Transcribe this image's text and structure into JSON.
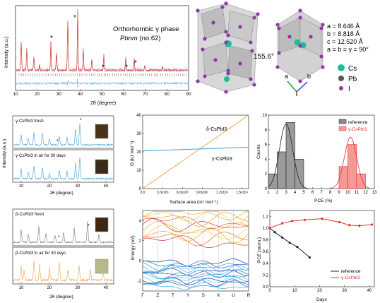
{
  "panel_a": {
    "ylabel": "Intensity (a.u.)",
    "xlabel": "2θ (degree)",
    "xticks": [
      "10",
      "20",
      "30",
      "40",
      "50",
      "60",
      "70",
      "80",
      "90"
    ],
    "phase_line1": "Orthorhombic γ phase",
    "phase_line2": "Pbnm",
    "phase_line2b": " (no.62)",
    "peak_marker": "*"
  },
  "panel_b": {
    "angle": "155.6°",
    "lattice": [
      "a = 8.646 Å",
      "b = 8.818 Å",
      "c = 12.520 Å",
      "a = b = γ = 90°"
    ],
    "axes": {
      "a": "a",
      "b": "b"
    },
    "legend": [
      {
        "label": "Cs",
        "color": "#1dbf9a"
      },
      {
        "label": "Pb",
        "color": "#3c3c3c"
      },
      {
        "label": "I",
        "color": "#8e3aa4"
      }
    ]
  },
  "panel_c": {
    "top_label": "γ-CsPbI3 fresh",
    "bottom_label": "γ-CsPbI3 in air for 30 days",
    "ylabel": "Intensity (a.u.)",
    "xlabel": "2θ (degree)",
    "xticks": [
      "10",
      "20",
      "30",
      "40"
    ]
  },
  "panel_d": {
    "ylabel": "G (kJ mol⁻¹)",
    "xlabel": "Surface area (m² mol⁻¹)",
    "yticks": [
      "0",
      "10",
      "20",
      "30",
      "40"
    ],
    "xticks": [
      "0.0",
      "3.0x10³",
      "6.0x10³",
      "9.0x10³",
      "1.2x10⁴",
      "1.5x10⁴"
    ],
    "delta_label": "δ-CsPbI3",
    "gamma_label": "γ-CsPbI3"
  },
  "panel_e": {
    "ylabel": "Counts",
    "xlabel": "PCE (%)",
    "yticks": [
      "0",
      "2",
      "4",
      "6",
      "8",
      "10"
    ],
    "xticks": [
      "1",
      "2",
      "3",
      "4",
      "5",
      "6",
      "7",
      "8",
      "9",
      "10",
      "11",
      "12",
      "13"
    ],
    "legend": [
      "reference",
      "γ-CsPbI3"
    ]
  },
  "panel_f": {
    "top_label": "β-CsPbI3 fresh",
    "bottom_label": "β-CsPbI3 in air for 30 days",
    "xlabel": "2θ (degree)",
    "xticks": [
      "10",
      "20",
      "30",
      "40"
    ]
  },
  "panel_g": {
    "ylabel": "Energy (eV)",
    "yticks": [
      "4",
      "2",
      "0",
      "-2"
    ],
    "kpoints": [
      "Γ",
      "Z",
      "T",
      "Y",
      "S",
      "X",
      "U",
      "R"
    ]
  },
  "panel_h": {
    "ylabel": "PCE (norm.)",
    "xlabel": "Days",
    "yticks": [
      "0.0",
      "0.2",
      "0.4",
      "0.6",
      "0.8",
      "1.0",
      "1.2"
    ],
    "xticks": [
      "0",
      "10",
      "20",
      "30",
      "40"
    ],
    "legend": [
      "reference",
      "γ-CsPbI3"
    ]
  },
  "colors": {
    "gray": "#7a7a7a",
    "red": "#e0302a",
    "blue": "#3aa0d6",
    "orange": "#f0a050",
    "black": "#222"
  },
  "chart_data": [
    {
      "type": "bar",
      "title": "",
      "xlabel": "PCE (%)",
      "ylabel": "Counts",
      "bin_width": 1,
      "series": [
        {
          "name": "reference",
          "bin_centers": [
            1.5,
            2.5,
            3.5,
            4.5
          ],
          "values": [
            2,
            5,
            9,
            4
          ]
        },
        {
          "name": "γ-CsPbI3",
          "bin_centers": [
            9.5,
            10.5,
            11.5
          ],
          "values": [
            3,
            6,
            2
          ]
        }
      ],
      "xlim": [
        1,
        13
      ],
      "ylim": [
        0,
        10
      ]
    },
    {
      "type": "line",
      "title": "",
      "xlabel": "Surface area (m² mol⁻¹)",
      "ylabel": "G (kJ mol⁻¹)",
      "series": [
        {
          "name": "δ-CsPbI3",
          "x": [
            0,
            16000
          ],
          "y": [
            0,
            40
          ]
        },
        {
          "name": "γ-CsPbI3",
          "x": [
            0,
            16000
          ],
          "y": [
            20.5,
            22.5
          ]
        }
      ],
      "xlim": [
        0,
        16000
      ],
      "ylim": [
        0,
        40
      ]
    },
    {
      "type": "line",
      "title": "",
      "xlabel": "Days",
      "ylabel": "PCE (norm.)",
      "series": [
        {
          "name": "reference",
          "x": [
            0,
            2,
            5,
            8,
            11,
            16
          ],
          "y": [
            1.0,
            0.93,
            0.84,
            0.75,
            0.68,
            0.5
          ]
        },
        {
          "name": "γ-CsPbI3",
          "x": [
            0,
            5,
            9,
            14,
            21,
            28,
            32,
            36,
            41
          ],
          "y": [
            1.0,
            1.08,
            1.12,
            1.14,
            1.16,
            1.1,
            1.05,
            1.04,
            1.06
          ]
        }
      ],
      "xlim": [
        0,
        42
      ],
      "ylim": [
        0,
        1.3
      ]
    }
  ]
}
